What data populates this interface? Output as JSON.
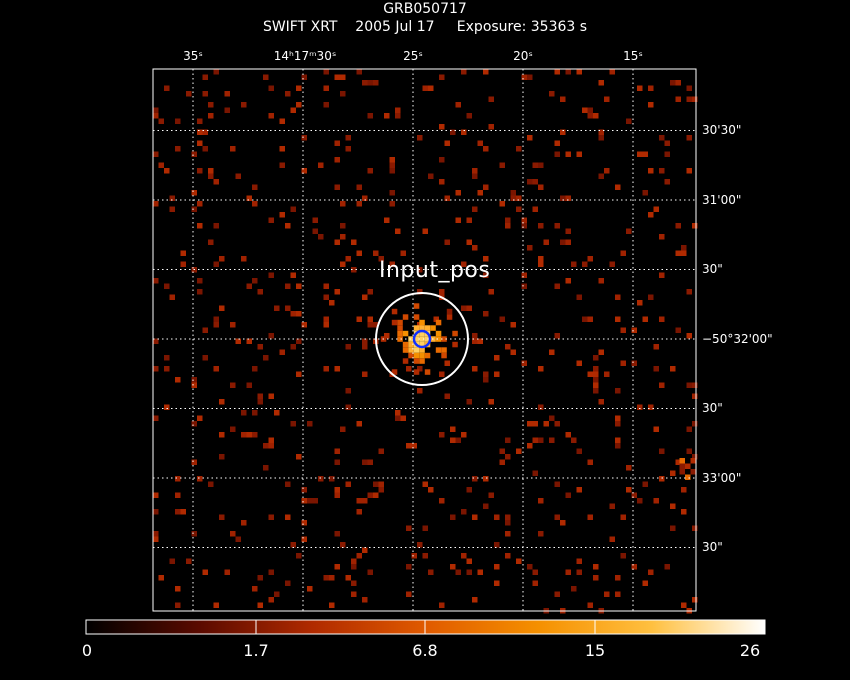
{
  "header": {
    "object": "GRB050717",
    "instrument": "SWIFT XRT",
    "date": "2005 Jul 17",
    "exposure": "Exposure: 35363 s"
  },
  "ra_ticks": [
    {
      "label": "35ˢ",
      "ra_s": 35
    },
    {
      "label": "14ʰ17ᵐ30ˢ",
      "ra_s": 30
    },
    {
      "label": "25ˢ",
      "ra_s": 25
    },
    {
      "label": "20ˢ",
      "ra_s": 20
    },
    {
      "label": "15ˢ",
      "ra_s": 15
    }
  ],
  "dec_ticks": [
    {
      "label": "30'30\"",
      "dec_arcsec": -90
    },
    {
      "label": "31'00\"",
      "dec_arcsec": -60
    },
    {
      "label": "30\"",
      "dec_arcsec": -30
    },
    {
      "label": "−50°32'00\"",
      "dec_arcsec": 0
    },
    {
      "label": "30\"",
      "dec_arcsec": 30
    },
    {
      "label": "33'00\"",
      "dec_arcsec": 60
    },
    {
      "label": "30\"",
      "dec_arcsec": 90
    }
  ],
  "source": {
    "label": "Input_pos"
  },
  "colorbar": {
    "labels": [
      "0",
      "1.7",
      "6.8",
      "15",
      "26"
    ],
    "colors": [
      "#000000",
      "#5a0a00",
      "#b02a00",
      "#e05a00",
      "#f59000",
      "#ffc040",
      "#ffffff"
    ]
  }
}
